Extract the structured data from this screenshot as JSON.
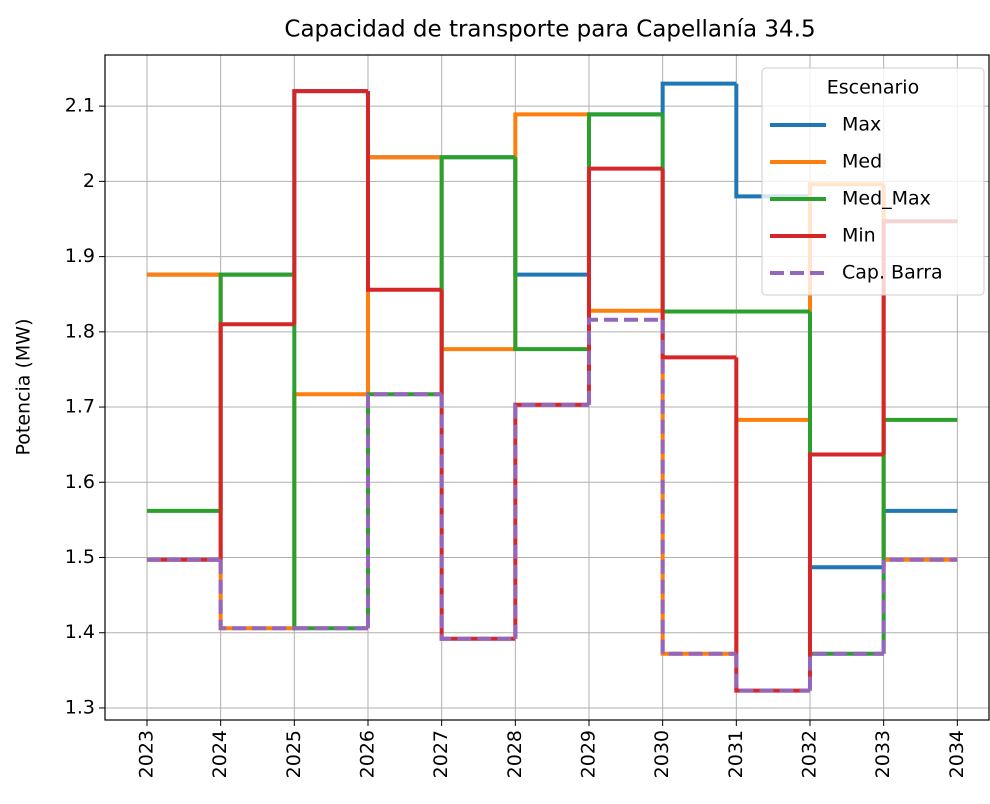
{
  "chart_data": {
    "type": "step",
    "title": "Capacidad de transporte para Capellanía 34.5",
    "y_label": "Potencia (MW)",
    "legend_title": "Escenario",
    "legend": "upper right",
    "grid": true,
    "x": [
      2023,
      2024,
      2025,
      2026,
      2027,
      2028,
      2029,
      2030,
      2031,
      2032,
      2033,
      2034
    ],
    "xlim": [
      2022.43,
      2034.43
    ],
    "xticks": [
      2023,
      2024,
      2025,
      2026,
      2027,
      2028,
      2029,
      2030,
      2031,
      2032,
      2033,
      2034
    ],
    "ylim": [
      1.284,
      2.168
    ],
    "yticks": [
      1.3,
      1.4,
      1.5,
      1.6,
      1.7,
      1.8,
      1.9,
      2.0,
      2.1
    ],
    "series": [
      {
        "name": "Max",
        "color": "#1f77b4",
        "values": [
          1.876,
          1.876,
          2.12,
          2.032,
          2.032,
          1.876,
          2.089,
          2.13,
          1.98,
          1.487,
          1.562,
          1.562
        ]
      },
      {
        "name": "Med",
        "color": "#ff7f0e",
        "values": [
          1.876,
          1.406,
          1.717,
          2.032,
          1.777,
          2.089,
          1.828,
          1.372,
          1.683,
          1.996,
          1.497,
          1.497
        ]
      },
      {
        "name": "Med_Max",
        "color": "#2ca02c",
        "values": [
          1.562,
          1.876,
          1.406,
          1.717,
          2.032,
          1.777,
          2.089,
          1.827,
          1.827,
          1.372,
          1.683,
          1.683
        ]
      },
      {
        "name": "Min",
        "color": "#d62728",
        "values": [
          1.497,
          1.81,
          2.12,
          1.856,
          1.392,
          1.703,
          2.017,
          1.766,
          1.323,
          1.637,
          1.947,
          1.947
        ]
      },
      {
        "name": "Cap. Barra",
        "color": "#9467bd",
        "dashed": true,
        "values": [
          1.497,
          1.406,
          1.406,
          1.717,
          1.392,
          1.703,
          1.816,
          1.372,
          1.323,
          1.372,
          1.497,
          1.497
        ]
      }
    ]
  }
}
